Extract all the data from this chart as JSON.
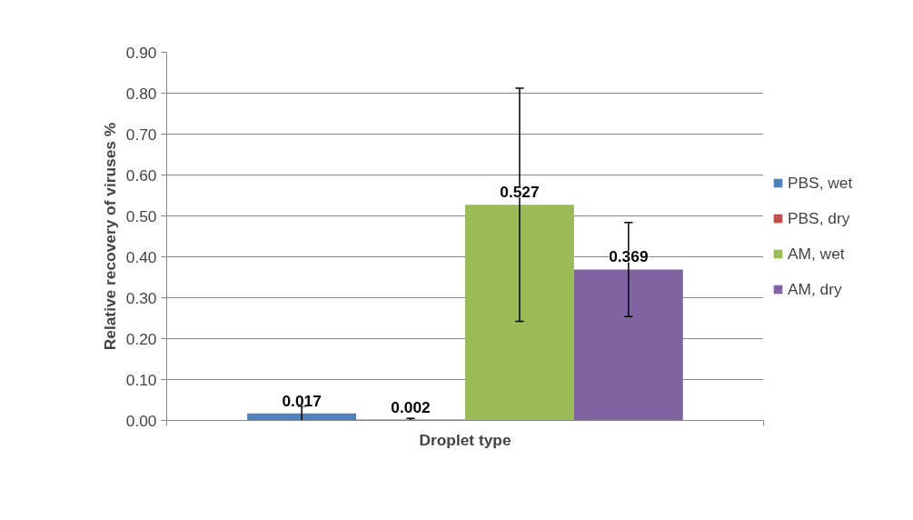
{
  "chart_data": {
    "type": "bar",
    "xlabel": "Droplet type",
    "ylabel": "Relative recovery of viruses %",
    "categories": [
      null
    ],
    "series": [
      {
        "name": "PBS, wet",
        "color": "#4f81bd",
        "values": [
          0.017
        ],
        "errors": [
          0.018
        ]
      },
      {
        "name": "PBS, dry",
        "color": "#c0504d",
        "values": [
          0.002
        ],
        "errors": [
          0.003
        ]
      },
      {
        "name": "AM, wet",
        "color": "#9bbb59",
        "values": [
          0.527
        ],
        "errors": [
          0.285
        ]
      },
      {
        "name": "AM, dry",
        "color": "#8064a2",
        "values": [
          0.369
        ],
        "errors": [
          0.115
        ]
      }
    ],
    "ylim": [
      0,
      0.9
    ],
    "yticks": [
      {
        "value": 0,
        "label": "0.00"
      },
      {
        "value": 0.1,
        "label": "0.10"
      },
      {
        "value": 0.2,
        "label": "0.20"
      },
      {
        "value": 0.3,
        "label": "0.30"
      },
      {
        "value": 0.4,
        "label": "0.40"
      },
      {
        "value": 0.5,
        "label": "0.50"
      },
      {
        "value": 0.6,
        "label": "0.60"
      },
      {
        "value": 0.7,
        "label": "0.70"
      },
      {
        "value": 0.8,
        "label": "0.80"
      },
      {
        "value": 0.9,
        "label": "0.90"
      }
    ],
    "grid": "y",
    "legend": "right",
    "data_labels": true
  }
}
